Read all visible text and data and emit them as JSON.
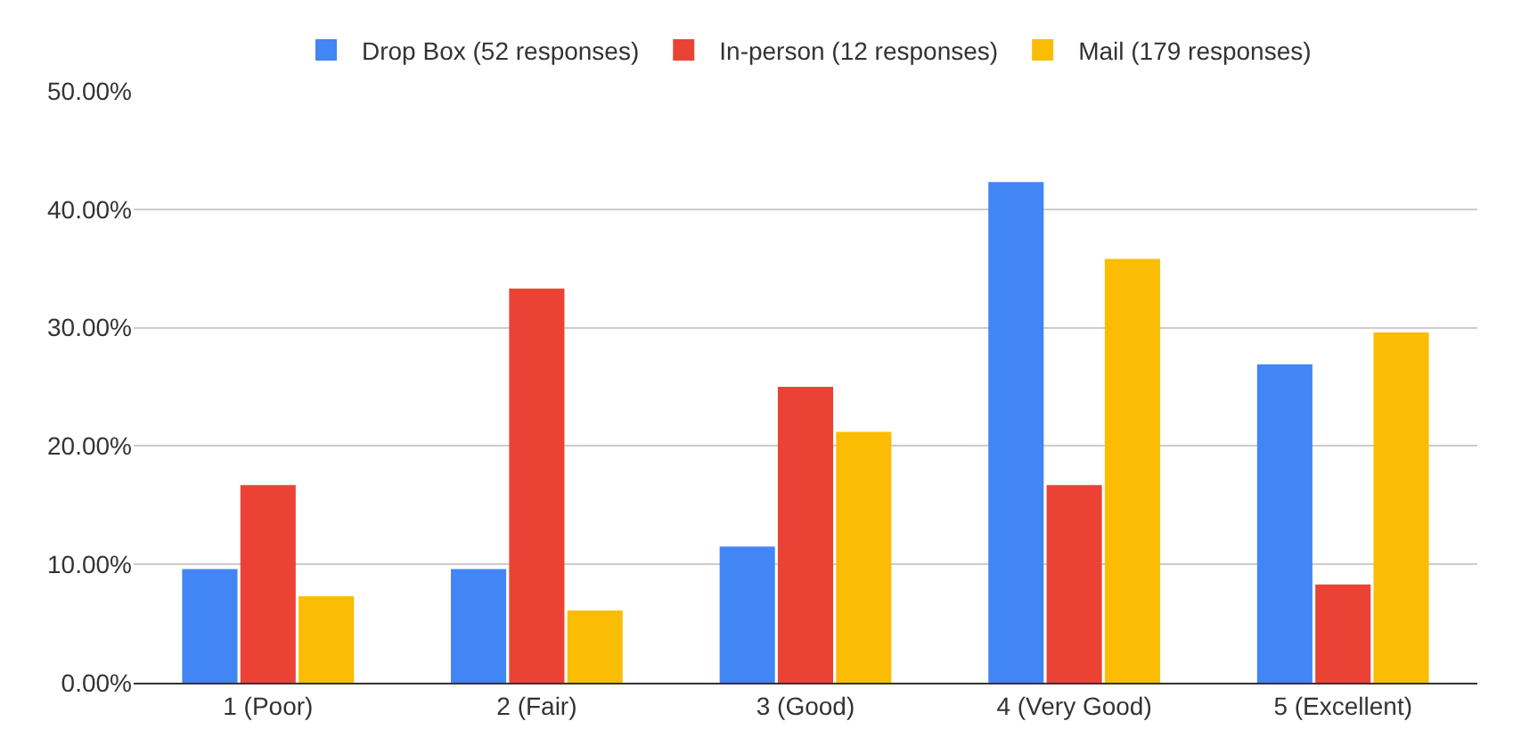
{
  "chart_data": {
    "type": "bar",
    "categories": [
      "1 (Poor)",
      "2 (Fair)",
      "3 (Good)",
      "4 (Very Good)",
      "5 (Excellent)"
    ],
    "series": [
      {
        "name": "Drop Box (52 responses)",
        "color": "#4285f4",
        "values": [
          9.6,
          9.6,
          11.5,
          42.3,
          26.9
        ]
      },
      {
        "name": "In-person (12 responses)",
        "color": "#ea4335",
        "values": [
          16.7,
          33.3,
          25.0,
          16.7,
          8.3
        ]
      },
      {
        "name": "Mail (179 responses)",
        "color": "#fbbc04",
        "values": [
          7.3,
          6.1,
          21.2,
          35.8,
          29.6
        ]
      }
    ],
    "ylim": [
      0,
      50
    ],
    "yticks": [
      {
        "value": 0,
        "label": "0.00%"
      },
      {
        "value": 10,
        "label": "10.00%"
      },
      {
        "value": 20,
        "label": "20.00%"
      },
      {
        "value": 30,
        "label": "30.00%"
      },
      {
        "value": 40,
        "label": "40.00%"
      },
      {
        "value": 50,
        "label": "50.00%"
      }
    ],
    "grid": "y",
    "legend": "top"
  }
}
